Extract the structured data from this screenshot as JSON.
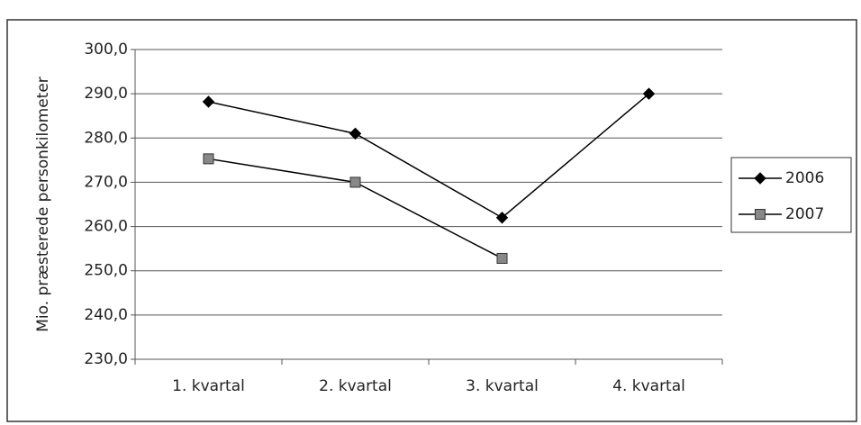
{
  "chart_data": {
    "type": "line",
    "y_label": "Mio. præsterede personkilometer",
    "categories": [
      "1. kvartal",
      "2. kvartal",
      "3. kvartal",
      "4. kvartal"
    ],
    "series": [
      {
        "name": "2006",
        "color": "#000000",
        "marker": "diamond",
        "values": [
          288.2,
          281.0,
          262.0,
          290.0
        ]
      },
      {
        "name": "2007",
        "color": "#888888",
        "marker": "square",
        "values": [
          275.3,
          270.0,
          252.8,
          null
        ]
      }
    ],
    "ylim": [
      230,
      300
    ],
    "yticks": [
      {
        "value": 230,
        "label": "230,0"
      },
      {
        "value": 240,
        "label": "240,0"
      },
      {
        "value": 250,
        "label": "250,0"
      },
      {
        "value": 260,
        "label": "260,0"
      },
      {
        "value": 270,
        "label": "270,0"
      },
      {
        "value": 280,
        "label": "280,0"
      },
      {
        "value": 290,
        "label": "290,0"
      },
      {
        "value": 300,
        "label": "300,0"
      }
    ],
    "grid": true,
    "legend": "right"
  }
}
